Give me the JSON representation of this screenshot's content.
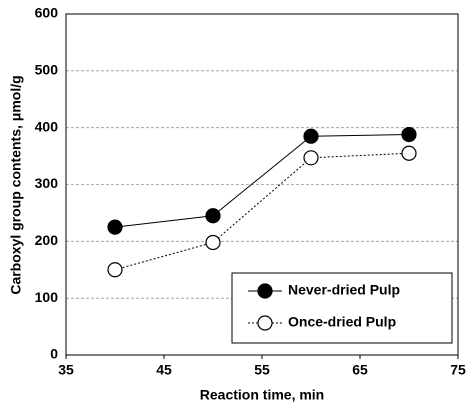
{
  "chart_data": {
    "type": "line",
    "x_label": "Reaction time, min",
    "y_label": "Carboxyl  group contents, μmol/g",
    "x": [
      40,
      50,
      60,
      70
    ],
    "series": [
      {
        "name": "Never-dried Pulp",
        "color": "#000000",
        "linestyle": "solid",
        "marker": "filled",
        "values": [
          225,
          245,
          385,
          388
        ]
      },
      {
        "name": "Once-dried Pulp",
        "color": "#000000",
        "linestyle": "dotted",
        "marker": "open",
        "values": [
          150,
          198,
          347,
          355
        ]
      }
    ],
    "xlim": [
      35,
      75
    ],
    "xticks": [
      35,
      45,
      55,
      65,
      75
    ],
    "ylim": [
      0,
      600
    ],
    "yticks": [
      0,
      100,
      200,
      300,
      400,
      500,
      600
    ],
    "grid": true,
    "legend": "lower right"
  }
}
